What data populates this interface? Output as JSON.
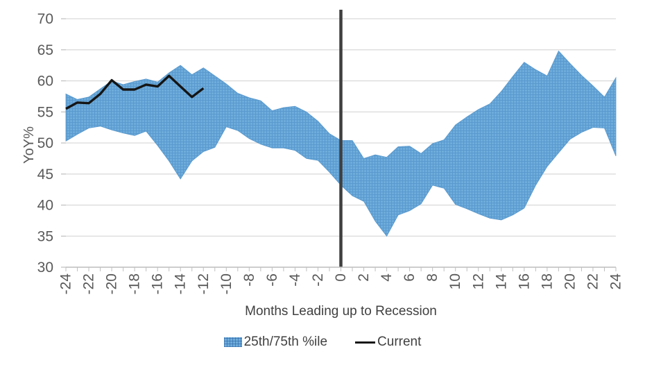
{
  "y_axis": {
    "title": "YoY%",
    "min": 30,
    "max": 70,
    "tick_step": 5,
    "ticks": [
      70,
      65,
      60,
      55,
      50,
      45,
      40,
      35,
      30
    ]
  },
  "x_axis": {
    "title": "Months Leading up to Recession",
    "min": -24,
    "max": 24,
    "label_step": 2,
    "minor_tick_step": 1
  },
  "legend": {
    "band_label": "25th/75th %ile",
    "line_label": "Current",
    "position": "bottom"
  },
  "colors": {
    "band_fill": "#6EACDB",
    "band_grid": "#4788C2",
    "band_edge": "#5797CC",
    "current_line": "#151515",
    "zero_line": "#3F3F3F",
    "gridline": "#D9D9D9",
    "axis_line": "#BFBFBF",
    "tick_text": "#595959",
    "title_text": "#404040",
    "background": "#FFFFFF"
  },
  "chart_data": {
    "type": "area",
    "title": "",
    "xlabel": "Months Leading up to Recession",
    "ylabel": "YoY%",
    "xlim": [
      -24,
      24
    ],
    "ylim": [
      30,
      70
    ],
    "grid": "horizontal",
    "legend_position": "bottom",
    "x": [
      -24,
      -23,
      -22,
      -21,
      -20,
      -19,
      -18,
      -17,
      -16,
      -15,
      -14,
      -13,
      -12,
      -11,
      -10,
      -9,
      -8,
      -7,
      -6,
      -5,
      -4,
      -3,
      -2,
      -1,
      0,
      1,
      2,
      3,
      4,
      5,
      6,
      7,
      8,
      9,
      10,
      11,
      12,
      13,
      14,
      15,
      16,
      17,
      18,
      19,
      20,
      21,
      22,
      23,
      24
    ],
    "series": [
      {
        "name": "25th/75th %ile",
        "type": "band",
        "upper": [
          57.9,
          57.0,
          57.4,
          58.7,
          60.0,
          59.4,
          59.9,
          60.3,
          59.8,
          61.3,
          62.5,
          61.0,
          62.1,
          60.8,
          59.5,
          58.0,
          57.3,
          56.8,
          55.2,
          55.7,
          55.9,
          55.0,
          53.5,
          51.5,
          50.4,
          50.4,
          47.5,
          48.1,
          47.7,
          49.4,
          49.5,
          48.3,
          49.9,
          50.5,
          52.9,
          54.2,
          55.4,
          56.3,
          58.3,
          60.7,
          63.0,
          61.8,
          60.8,
          64.8,
          62.8,
          60.9,
          59.2,
          57.4,
          60.5
        ],
        "lower": [
          50.3,
          51.4,
          52.4,
          52.7,
          52.1,
          51.6,
          51.2,
          51.9,
          49.6,
          47.1,
          44.2,
          47.1,
          48.6,
          49.3,
          52.6,
          52.0,
          50.7,
          49.8,
          49.2,
          49.2,
          48.8,
          47.5,
          47.2,
          45.3,
          43.2,
          41.5,
          40.6,
          37.4,
          35.0,
          38.4,
          39.1,
          40.2,
          43.2,
          42.7,
          40.1,
          39.4,
          38.6,
          37.9,
          37.6,
          38.4,
          39.5,
          43.2,
          46.2,
          48.4,
          50.6,
          51.7,
          52.5,
          52.4,
          47.9
        ]
      },
      {
        "name": "Current",
        "type": "line",
        "x": [
          -24,
          -23,
          -22,
          -21,
          -20,
          -19,
          -18,
          -17,
          -16,
          -15,
          -14,
          -13,
          -12
        ],
        "values": [
          55.5,
          56.5,
          56.4,
          57.9,
          60.1,
          58.6,
          58.6,
          59.4,
          59.1,
          60.8,
          59.1,
          57.4,
          58.8
        ]
      }
    ],
    "annotations": [
      {
        "type": "vline",
        "x": 0
      }
    ]
  }
}
